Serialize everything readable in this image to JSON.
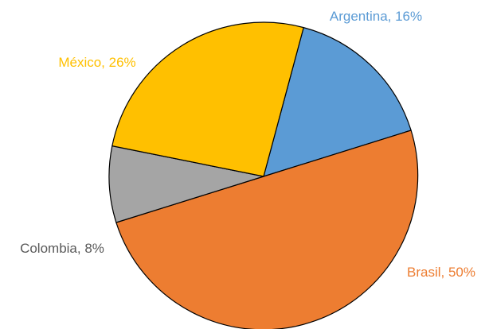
{
  "chart_data": {
    "type": "pie",
    "slices": [
      {
        "label": "Argentina, 16%",
        "category": "Argentina",
        "value": 16,
        "color": "#5b9bd5"
      },
      {
        "label": "Brasil, 50%",
        "category": "Brasil",
        "value": 50,
        "color": "#ed7d31"
      },
      {
        "label": "Colombia, 8%",
        "category": "Colombia",
        "value": 8,
        "color": "#a5a5a5"
      },
      {
        "label": "México, 26%",
        "category": "México",
        "value": 26,
        "color": "#ffc000"
      }
    ],
    "label_colors": {
      "Argentina": "#5b9bd5",
      "Brasil": "#ed7d31",
      "Colombia": "#595959",
      "México": "#ffc000"
    },
    "slice_outline_color": "#000000",
    "start_angle_deg": 15,
    "direction": "clockwise"
  }
}
